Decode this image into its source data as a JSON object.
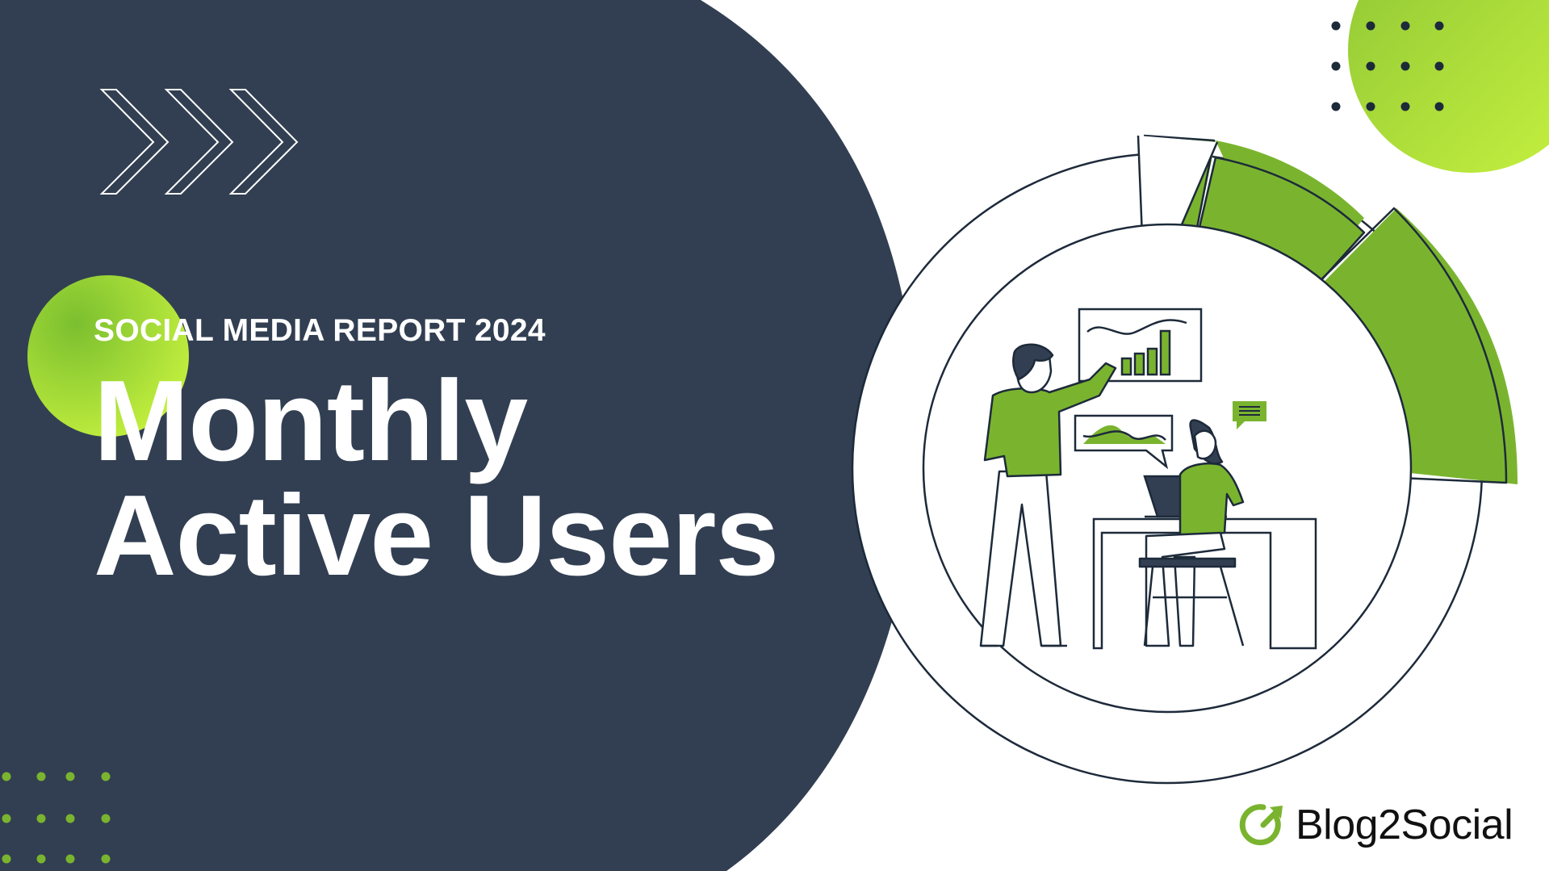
{
  "slide": {
    "subtitle": "SOCIAL MEDIA REPORT 2024",
    "title_line1": "Monthly",
    "title_line2": "Active Users"
  },
  "brand": {
    "name": "Blog2Social",
    "logo_icon": "refresh-arrow-icon"
  },
  "colors": {
    "navy": "#323f52",
    "green": "#7ab42f",
    "lime": "#b6e83c",
    "outline": "#1d2a3a",
    "white": "#ffffff"
  },
  "icons": [
    "chevron-arrows-decoration",
    "dot-grid-decoration",
    "people-analytics-illustration"
  ]
}
